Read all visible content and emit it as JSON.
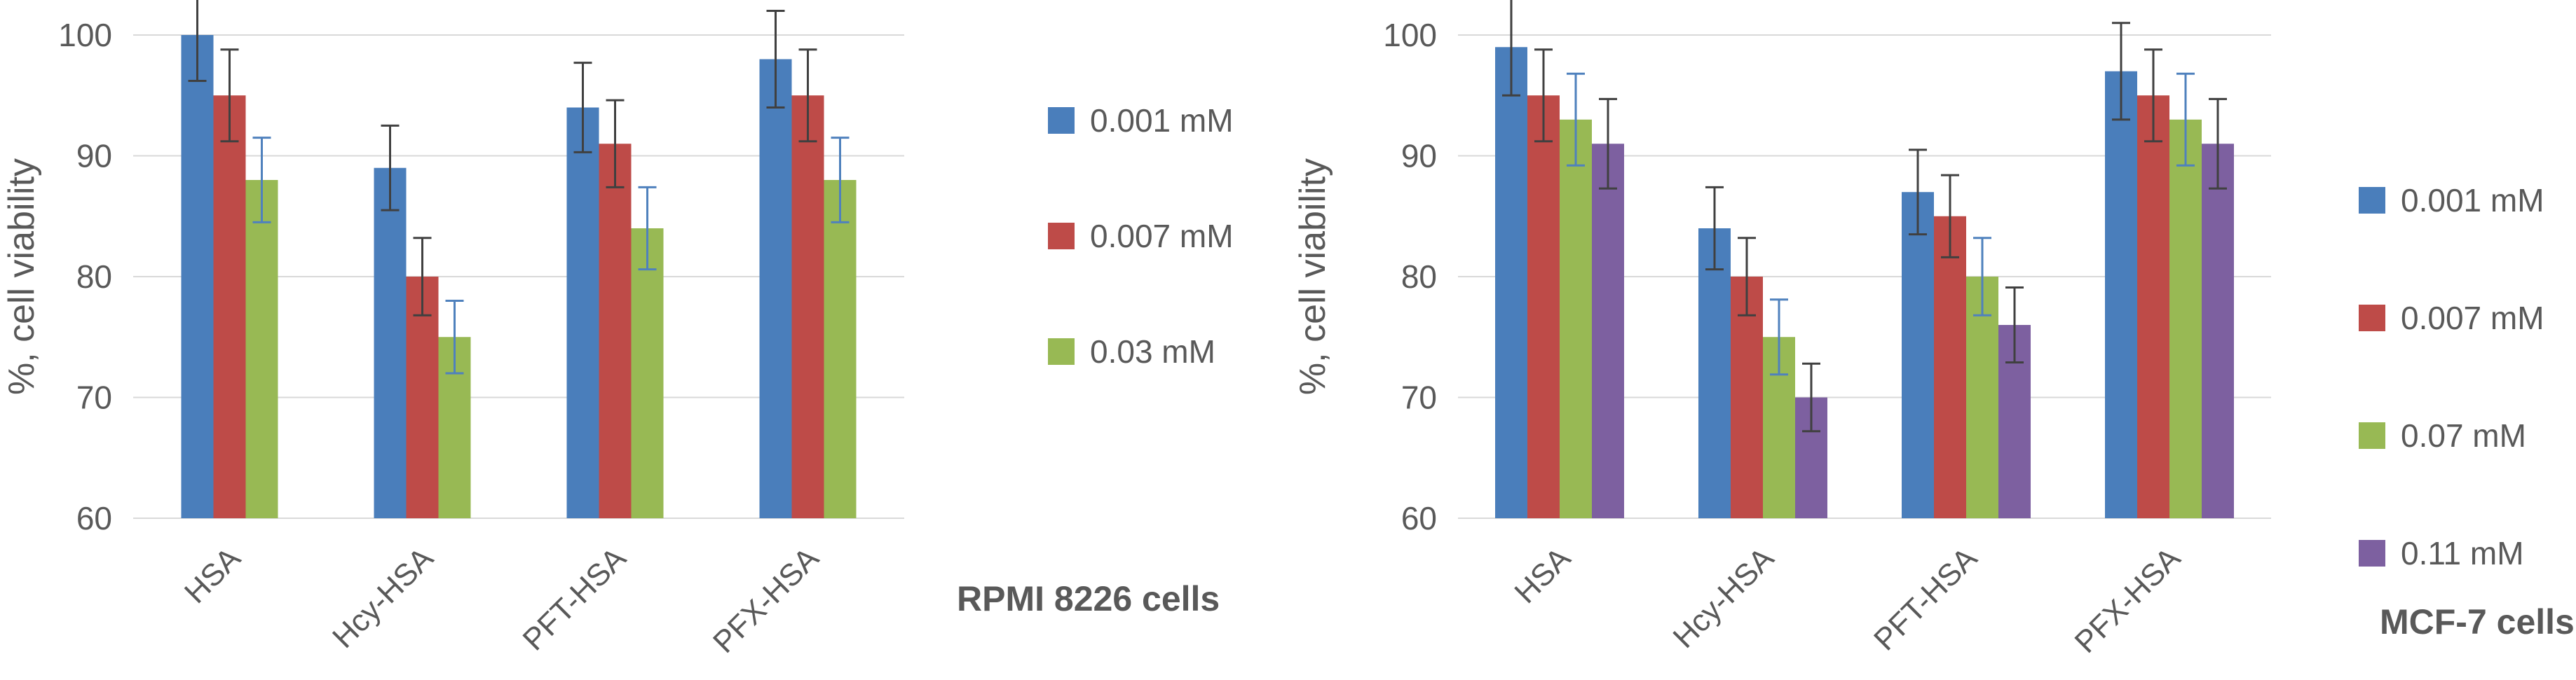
{
  "chart_data": [
    {
      "type": "bar",
      "title": "RPMI 8226 cells",
      "xlabel": "",
      "ylabel": "%, cell viability",
      "ylim": [
        60,
        100
      ],
      "yticks": [
        60,
        70,
        80,
        90,
        100
      ],
      "categories": [
        "HSA",
        "Hcy-HSA",
        "PFT-HSA",
        "PFX-HSA"
      ],
      "series": [
        {
          "name": "0.001 mM",
          "color": "#4a7ebb",
          "values": [
            100,
            89,
            94,
            98
          ],
          "errors": [
            3.8,
            3.5,
            3.7,
            4.0
          ]
        },
        {
          "name": "0.007 mM",
          "color": "#be4b48",
          "values": [
            95,
            80,
            91,
            95
          ],
          "errors": [
            3.8,
            3.2,
            3.6,
            3.8
          ]
        },
        {
          "name": "0.03 mM",
          "color": "#98b954",
          "values": [
            88,
            75,
            84,
            88
          ],
          "errors": [
            3.5,
            3.0,
            3.4,
            3.5
          ]
        }
      ],
      "legend": "right",
      "grid": true
    },
    {
      "type": "bar",
      "title": "MCF-7 cells",
      "xlabel": "",
      "ylabel": "%, cell viability",
      "ylim": [
        60,
        100
      ],
      "yticks": [
        60,
        70,
        80,
        90,
        100
      ],
      "categories": [
        "HSA",
        "Hcy-HSA",
        "PFT-HSA",
        "PFX-HSA"
      ],
      "series": [
        {
          "name": "0.001 mM",
          "color": "#4a7ebb",
          "values": [
            99,
            84,
            87,
            97
          ],
          "errors": [
            4.0,
            3.4,
            3.5,
            4.0
          ]
        },
        {
          "name": "0.007 mM",
          "color": "#be4b48",
          "values": [
            95,
            80,
            85,
            95
          ],
          "errors": [
            3.8,
            3.2,
            3.4,
            3.8
          ]
        },
        {
          "name": "0.07 mM",
          "color": "#98b954",
          "values": [
            93,
            75,
            80,
            93
          ],
          "errors": [
            3.8,
            3.1,
            3.2,
            3.8
          ]
        },
        {
          "name": "0.11 mM",
          "color": "#7d60a0",
          "values": [
            91,
            70,
            76,
            91
          ],
          "errors": [
            3.7,
            2.8,
            3.1,
            3.7
          ]
        }
      ],
      "legend": "right",
      "grid": true
    }
  ]
}
